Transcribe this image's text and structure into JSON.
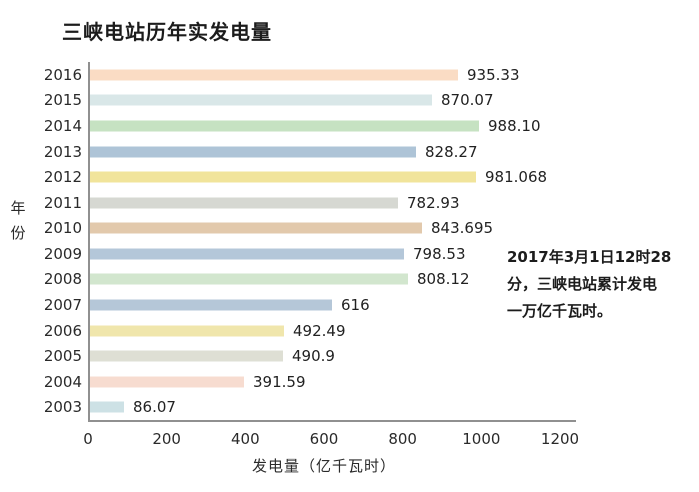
{
  "title": "三峡电站历年实发电量",
  "y_axis_label": "年份",
  "x_axis_label": "发电量（亿千瓦时）",
  "annotation": {
    "lines": [
      "2017年3月1日12时28",
      "分，三峡电站累计发电",
      "一万亿千瓦时。"
    ]
  },
  "chart_data": {
    "type": "bar",
    "orientation": "horizontal",
    "title": "三峡电站历年实发电量",
    "xlabel": "发电量（亿千瓦时）",
    "ylabel": "年份",
    "xlim": [
      0,
      1200
    ],
    "x_ticks": [
      0,
      200,
      400,
      600,
      800,
      1000,
      1200
    ],
    "grid": false,
    "legend": null,
    "categories": [
      "2016",
      "2015",
      "2014",
      "2013",
      "2012",
      "2011",
      "2010",
      "2009",
      "2008",
      "2007",
      "2006",
      "2005",
      "2004",
      "2003"
    ],
    "values": [
      935.33,
      870.07,
      988.1,
      828.27,
      981.068,
      782.93,
      843.695,
      798.53,
      808.12,
      616,
      492.49,
      490.9,
      391.59,
      86.07
    ],
    "value_labels": [
      "935.33",
      "870.07",
      "988.10",
      "828.27",
      "981.068",
      "782.93",
      "843.695",
      "798.53",
      "808.12",
      "616",
      "492.49",
      "490.9",
      "391.59",
      "86.07"
    ],
    "bar_colors": [
      "#fadcc4",
      "#d9e7e8",
      "#c6e2c2",
      "#aec4d7",
      "#f1e49b",
      "#d6d8d2",
      "#e2c9ac",
      "#b4c7d9",
      "#d2e6ce",
      "#b5c7d8",
      "#f0e6ac",
      "#dedfd4",
      "#f7dcd0",
      "#cde1e5"
    ],
    "axis_line_color": "#909090",
    "text_color": "#222222"
  }
}
